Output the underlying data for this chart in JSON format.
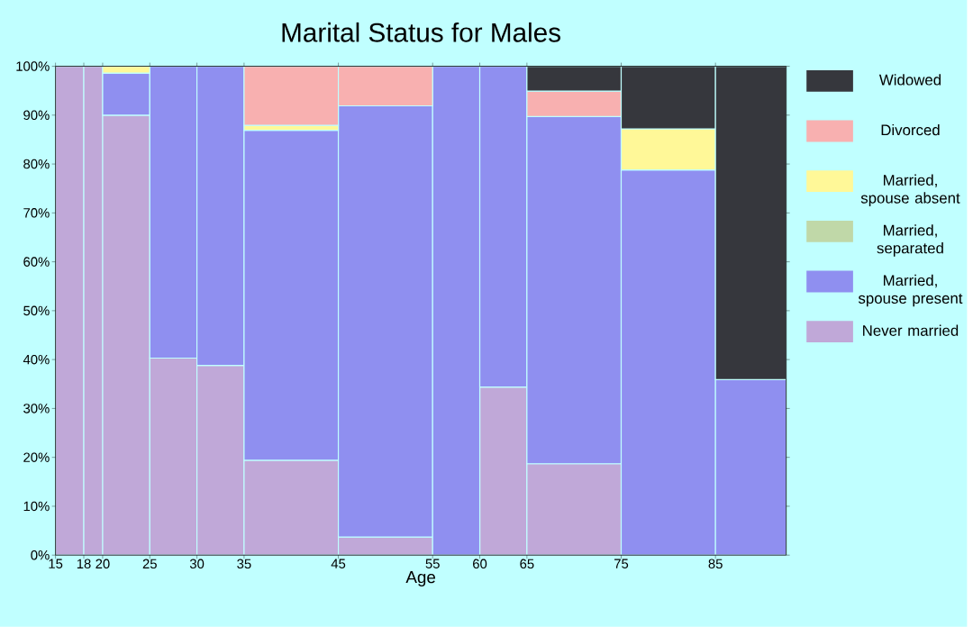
{
  "chart_data": {
    "type": "bar",
    "stacked": true,
    "title": "Marital Status for Males",
    "xlabel": "Age",
    "x": [
      16.5,
      19,
      22.5,
      27.5,
      32.5,
      40,
      50,
      57.5,
      62.5,
      70,
      80,
      88.75
    ],
    "xlim": [
      15,
      92.5
    ],
    "xticks": [
      15,
      18,
      20,
      25,
      30,
      35,
      45,
      55,
      60,
      65,
      75,
      85
    ],
    "ylim": [
      0,
      100
    ],
    "yticks": [
      {
        "value": 0,
        "label": "0%"
      },
      {
        "value": 10,
        "label": "10%"
      },
      {
        "value": 20,
        "label": "20%"
      },
      {
        "value": 30,
        "label": "30%"
      },
      {
        "value": 40,
        "label": "40%"
      },
      {
        "value": 50,
        "label": "50%"
      },
      {
        "value": 60,
        "label": "60%"
      },
      {
        "value": 70,
        "label": "70%"
      },
      {
        "value": 80,
        "label": "80%"
      },
      {
        "value": 90,
        "label": "90%"
      },
      {
        "value": 100,
        "label": "100%"
      }
    ],
    "legend": "right",
    "series": [
      {
        "name": "Never married",
        "color": "#c0a8d8",
        "values": [
          100,
          100,
          90,
          40.3,
          38.8,
          19.4,
          3.7,
          0,
          34.4,
          18.7,
          0,
          0
        ]
      },
      {
        "name": "Married, spouse present",
        "color": "#8f8ff0",
        "values": [
          0,
          0,
          8.6,
          59.7,
          61.2,
          67.5,
          88.2,
          100,
          65.6,
          71,
          78.8,
          35.9
        ]
      },
      {
        "name": "Married, separated",
        "color": "#c0d8a8",
        "values": [
          0,
          0,
          0,
          0,
          0,
          0,
          0,
          0,
          0,
          0,
          0,
          0
        ]
      },
      {
        "name": "Married, spouse absent",
        "color": "#fff898",
        "values": [
          0,
          0,
          1.4,
          0,
          0,
          1,
          0,
          0,
          0,
          0,
          8.4,
          0
        ]
      },
      {
        "name": "Divorced",
        "color": "#f8b0b0",
        "values": [
          0,
          0,
          0,
          0,
          0,
          12.1,
          8.1,
          0,
          0,
          5.2,
          0,
          0
        ]
      },
      {
        "name": "Widowed",
        "color": "#36373d",
        "values": [
          0,
          0,
          0,
          0,
          0,
          0,
          0,
          0,
          0,
          5.1,
          12.8,
          64.1
        ]
      }
    ]
  }
}
